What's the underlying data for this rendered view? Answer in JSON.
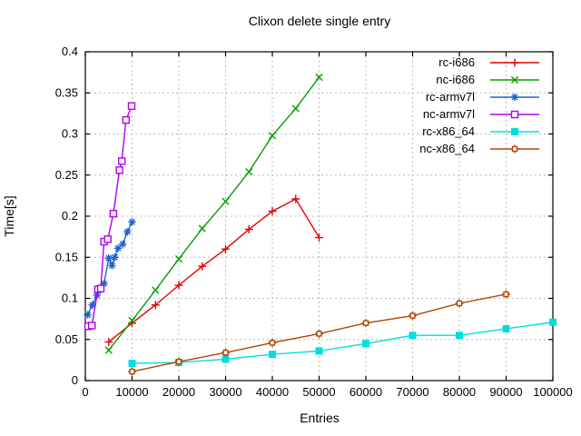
{
  "chart_data": {
    "type": "line",
    "title": "Clixon delete single entry",
    "xlabel": "Entries",
    "ylabel": "Time[s]",
    "xlim": [
      0,
      100000
    ],
    "ylim": [
      0,
      0.4
    ],
    "x_ticks": [
      0,
      10000,
      20000,
      30000,
      40000,
      50000,
      60000,
      70000,
      80000,
      90000,
      100000
    ],
    "x_tick_labels": [
      "0",
      "10000",
      "20000",
      "30000",
      "40000",
      "50000",
      "60000",
      "70000",
      "80000",
      "90000",
      "100000"
    ],
    "y_ticks": [
      0,
      0.05,
      0.1,
      0.15,
      0.2,
      0.25,
      0.3,
      0.35,
      0.4
    ],
    "y_tick_labels": [
      "0",
      "0.05",
      "0.1",
      "0.15",
      "0.2",
      "0.25",
      "0.3",
      "0.35",
      "0.4"
    ],
    "grid": true,
    "grid_color": "#bcbcbc",
    "border_color": "#000000",
    "legend_position": "top-right-inside",
    "series": [
      {
        "name": "rc-i686",
        "color": "#e60000",
        "marker": "plus",
        "points": [
          [
            5000,
            0.047
          ],
          [
            10000,
            0.07
          ],
          [
            15000,
            0.092
          ],
          [
            20000,
            0.116
          ],
          [
            25000,
            0.139
          ],
          [
            30000,
            0.16
          ],
          [
            35000,
            0.184
          ],
          [
            40000,
            0.206
          ],
          [
            45000,
            0.221
          ],
          [
            50000,
            0.174
          ]
        ]
      },
      {
        "name": "nc-i686",
        "color": "#00a000",
        "marker": "cross",
        "points": [
          [
            5000,
            0.037
          ],
          [
            10000,
            0.073
          ],
          [
            15000,
            0.11
          ],
          [
            20000,
            0.148
          ],
          [
            25000,
            0.185
          ],
          [
            30000,
            0.218
          ],
          [
            35000,
            0.254
          ],
          [
            40000,
            0.298
          ],
          [
            45000,
            0.331
          ],
          [
            50000,
            0.369
          ]
        ]
      },
      {
        "name": "rc-armv7l",
        "color": "#1e62d0",
        "marker": "asterisk",
        "points": [
          [
            500,
            0.08
          ],
          [
            1500,
            0.092
          ],
          [
            2500,
            0.104
          ],
          [
            4000,
            0.118
          ],
          [
            5000,
            0.149
          ],
          [
            5700,
            0.14
          ],
          [
            6300,
            0.15
          ],
          [
            7000,
            0.161
          ],
          [
            8000,
            0.166
          ],
          [
            9000,
            0.181
          ],
          [
            10000,
            0.193
          ]
        ]
      },
      {
        "name": "nc-armv7l",
        "color": "#b000f0",
        "marker": "open-square",
        "points": [
          [
            600,
            0.066
          ],
          [
            1400,
            0.067
          ],
          [
            2700,
            0.111
          ],
          [
            3300,
            0.112
          ],
          [
            4000,
            0.169
          ],
          [
            4800,
            0.172
          ],
          [
            6000,
            0.203
          ],
          [
            7300,
            0.256
          ],
          [
            7800,
            0.267
          ],
          [
            8700,
            0.317
          ],
          [
            9900,
            0.334
          ]
        ]
      },
      {
        "name": "rc-x86_64",
        "color": "#00dede",
        "marker": "filled-square",
        "points": [
          [
            10000,
            0.021
          ],
          [
            20000,
            0.022
          ],
          [
            30000,
            0.026
          ],
          [
            40000,
            0.032
          ],
          [
            50000,
            0.036
          ],
          [
            60000,
            0.045
          ],
          [
            70000,
            0.055
          ],
          [
            80000,
            0.055
          ],
          [
            90000,
            0.063
          ],
          [
            100000,
            0.071
          ]
        ]
      },
      {
        "name": "nc-x86_64",
        "color": "#b04600",
        "marker": "square-plus",
        "points": [
          [
            10000,
            0.011
          ],
          [
            20000,
            0.023
          ],
          [
            30000,
            0.034
          ],
          [
            40000,
            0.046
          ],
          [
            50000,
            0.057
          ],
          [
            60000,
            0.07
          ],
          [
            70000,
            0.079
          ],
          [
            80000,
            0.094
          ],
          [
            90000,
            0.105
          ]
        ]
      }
    ]
  }
}
